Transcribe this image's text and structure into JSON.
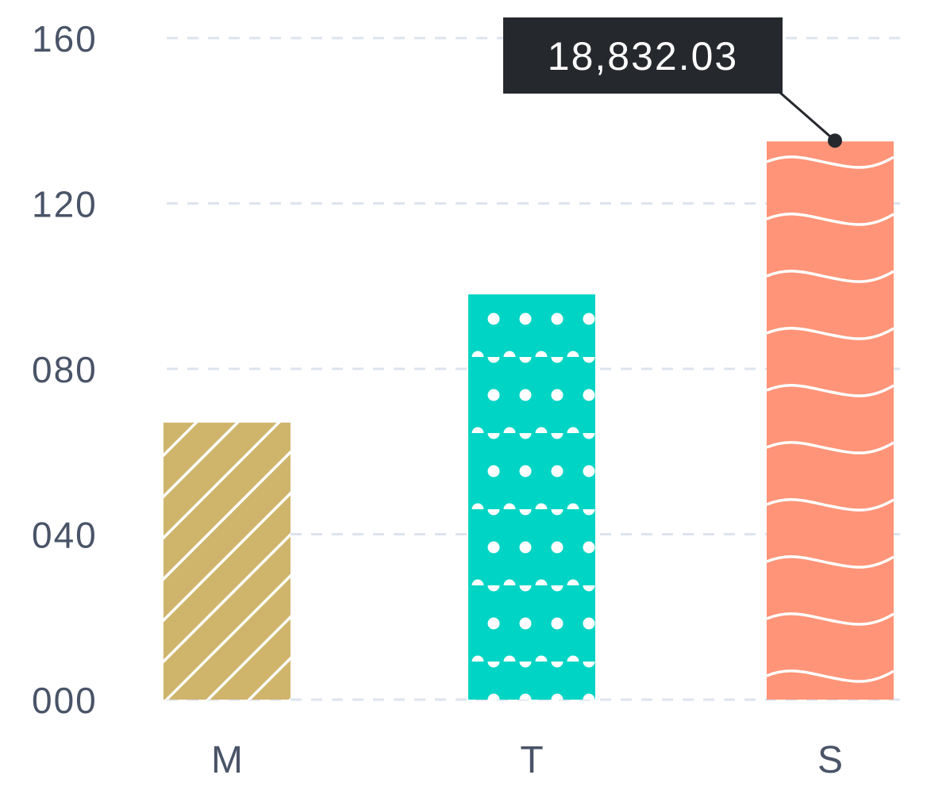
{
  "chart_data": {
    "type": "bar",
    "categories": [
      "M",
      "T",
      "S"
    ],
    "values": [
      67,
      98,
      135
    ],
    "ylim": [
      0,
      160
    ],
    "yticks": [
      0,
      40,
      80,
      120,
      160
    ],
    "ytick_labels": [
      "000",
      "040",
      "080",
      "120",
      "160"
    ],
    "grid": true,
    "legend": "none",
    "bar_colors": [
      "#cfb46c",
      "#00d4c4",
      "#ff9478"
    ],
    "bar_patterns": [
      "diagonal-lines",
      "dots",
      "waves"
    ],
    "pattern_color": "#ffffff",
    "gridline_color": "#dde4ef",
    "text_color": "#4a5468",
    "tooltip": {
      "category": "S",
      "text": "18,832.03",
      "background": "#25282d",
      "text_color": "#ffffff"
    }
  }
}
